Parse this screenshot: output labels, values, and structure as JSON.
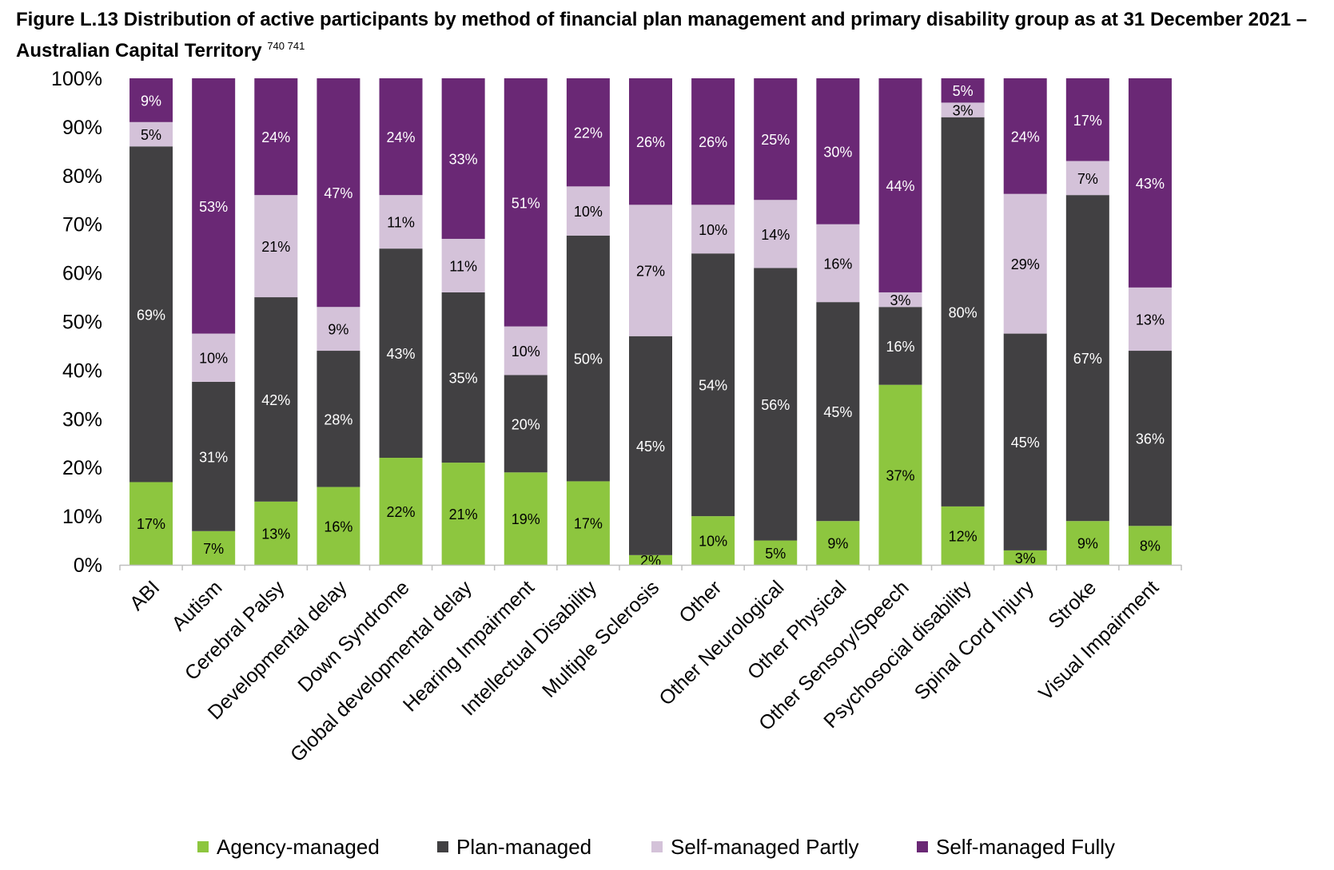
{
  "figure": {
    "title": "Figure L.13 Distribution of active participants by method of financial plan management and primary disability group as at 31 December 2021 – Australian Capital Territory",
    "title_superscript": "740 741"
  },
  "chart_data": {
    "type": "bar",
    "stacked": true,
    "categories": [
      "ABI",
      "Autism",
      "Cerebral Palsy",
      "Developmental delay",
      "Down Syndrome",
      "Global developmental delay",
      "Hearing Impairment",
      "Intellectual Disability",
      "Multiple Sclerosis",
      "Other",
      "Other Neurological",
      "Other Physical",
      "Other Sensory/Speech",
      "Psychosocial disability",
      "Spinal Cord Injury",
      "Stroke",
      "Visual Impairment"
    ],
    "series": [
      {
        "name": "Agency-managed",
        "color": "#8dc63f",
        "label_color": "#000000",
        "values": [
          17,
          7,
          13,
          16,
          22,
          21,
          19,
          17,
          2,
          10,
          5,
          9,
          37,
          12,
          3,
          9,
          8
        ],
        "labels": [
          "17%",
          "7%",
          "13%",
          "16%",
          "22%",
          "21%",
          "19%",
          "17%",
          "2%",
          "10%",
          "5%",
          "9%",
          "37%",
          "12%",
          "3%",
          "9%",
          "8%"
        ]
      },
      {
        "name": "Plan-managed",
        "color": "#414042",
        "label_color": "#ffffff",
        "values": [
          69,
          31,
          42,
          28,
          43,
          35,
          20,
          50,
          45,
          54,
          56,
          45,
          16,
          80,
          45,
          67,
          36
        ],
        "labels": [
          "69%",
          "31%",
          "42%",
          "28%",
          "43%",
          "35%",
          "20%",
          "50%",
          "45%",
          "54%",
          "56%",
          "45%",
          "16%",
          "80%",
          "45%",
          "67%",
          "36%"
        ]
      },
      {
        "name": "Self-managed Partly",
        "color": "#d4c2d9",
        "label_color": "#000000",
        "values": [
          5,
          10,
          21,
          9,
          11,
          11,
          10,
          10,
          27,
          10,
          14,
          16,
          3,
          3,
          29,
          7,
          13
        ],
        "labels": [
          "5%",
          "10%",
          "21%",
          "9%",
          "11%",
          "11%",
          "10%",
          "10%",
          "27%",
          "10%",
          "14%",
          "16%",
          "3%",
          "3%",
          "29%",
          "7%",
          "13%"
        ]
      },
      {
        "name": "Self-managed Fully",
        "color": "#6a2875",
        "label_color": "#ffffff",
        "values": [
          9,
          53,
          24,
          47,
          24,
          33,
          51,
          22,
          26,
          26,
          25,
          30,
          44,
          5,
          24,
          17,
          43
        ],
        "labels": [
          "9%",
          "53%",
          "24%",
          "47%",
          "24%",
          "33%",
          "51%",
          "22%",
          "26%",
          "26%",
          "25%",
          "30%",
          "44%",
          "5%",
          "24%",
          "17%",
          "43%"
        ]
      }
    ],
    "y_ticks": [
      "0%",
      "10%",
      "20%",
      "30%",
      "40%",
      "50%",
      "60%",
      "70%",
      "80%",
      "90%",
      "100%"
    ],
    "ylim": [
      0,
      100
    ],
    "grid": false,
    "legend_position": "bottom"
  }
}
